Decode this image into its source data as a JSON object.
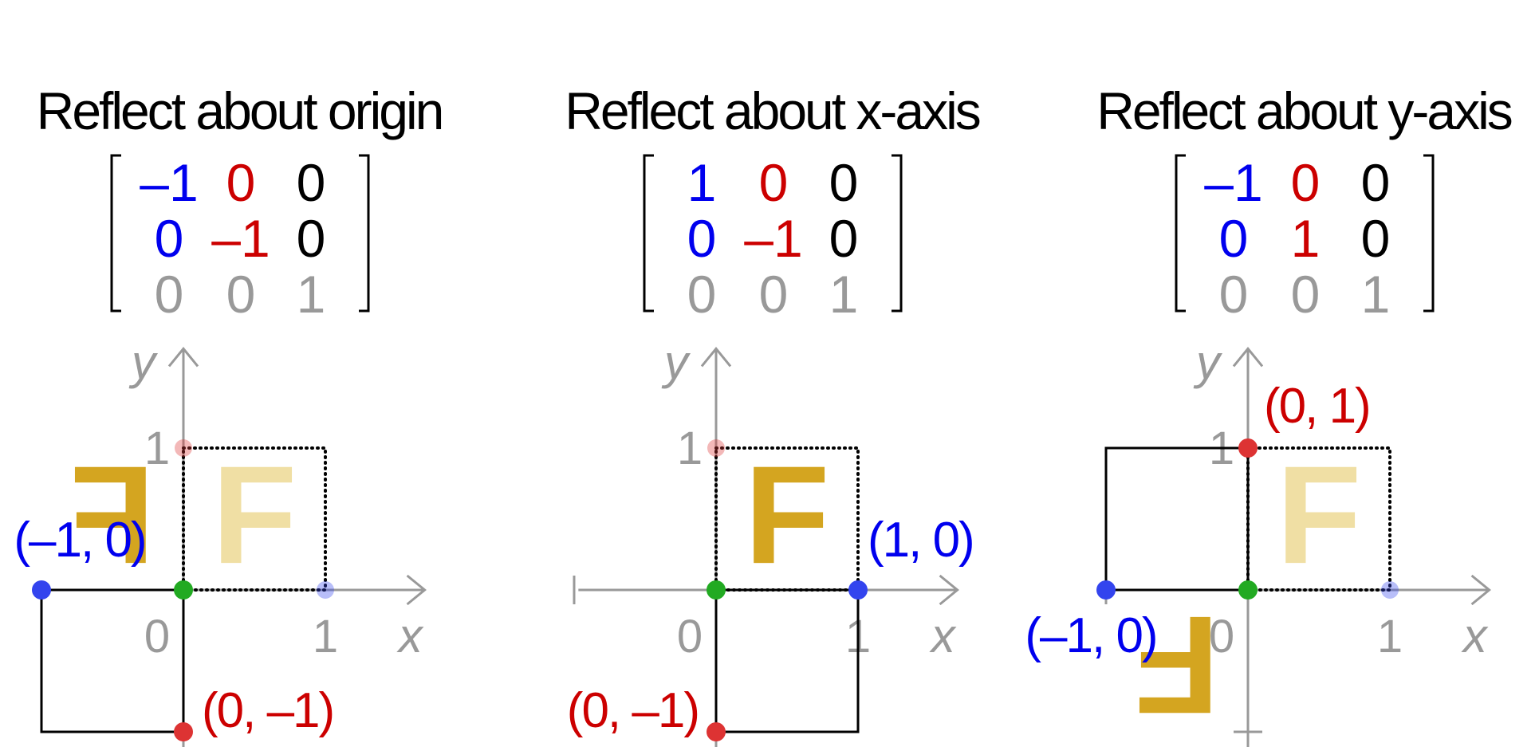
{
  "colors": {
    "x_basis": "#0000ee",
    "y_basis": "#cc0000",
    "translation": "#000000",
    "bottom_row": "#999999",
    "axis": "#999999",
    "origin_point": "#22aa22",
    "x_point": "#3344ee",
    "y_point": "#dd3333",
    "letter_original": "#f0dfa4",
    "letter_transformed": "#d4a520"
  },
  "panels": [
    {
      "title": "Reflect about origin",
      "matrix": [
        [
          "–1",
          "0",
          "0"
        ],
        [
          "0",
          "–1",
          "0"
        ],
        [
          "0",
          "0",
          "1"
        ]
      ],
      "axis_x_label": "x",
      "axis_y_label": "y",
      "tick_zero": "0",
      "tick_x_one": "1",
      "tick_y_one": "1",
      "letter": "F",
      "image_of_x_label": "(–1, 0)",
      "image_of_y_label": "(0, –1)",
      "image_of_x": [
        -1,
        0
      ],
      "image_of_y": [
        0,
        -1
      ]
    },
    {
      "title": "Reflect about x-axis",
      "matrix": [
        [
          "1",
          "0",
          "0"
        ],
        [
          "0",
          "–1",
          "0"
        ],
        [
          "0",
          "0",
          "1"
        ]
      ],
      "axis_x_label": "x",
      "axis_y_label": "y",
      "tick_zero": "0",
      "tick_x_one": "1",
      "tick_y_one": "1",
      "letter": "F",
      "image_of_x_label": "(1, 0)",
      "image_of_y_label": "(0, –1)",
      "image_of_x": [
        1,
        0
      ],
      "image_of_y": [
        0,
        -1
      ]
    },
    {
      "title": "Reflect about y-axis",
      "matrix": [
        [
          "–1",
          "0",
          "0"
        ],
        [
          "0",
          "1",
          "0"
        ],
        [
          "0",
          "0",
          "1"
        ]
      ],
      "axis_x_label": "x",
      "axis_y_label": "y",
      "tick_zero": "0",
      "tick_x_one": "1",
      "tick_y_one": "1",
      "letter": "F",
      "image_of_x_label": "(–1, 0)",
      "image_of_y_label": "(0, 1)",
      "image_of_x": [
        -1,
        0
      ],
      "image_of_y": [
        0,
        1
      ]
    }
  ]
}
